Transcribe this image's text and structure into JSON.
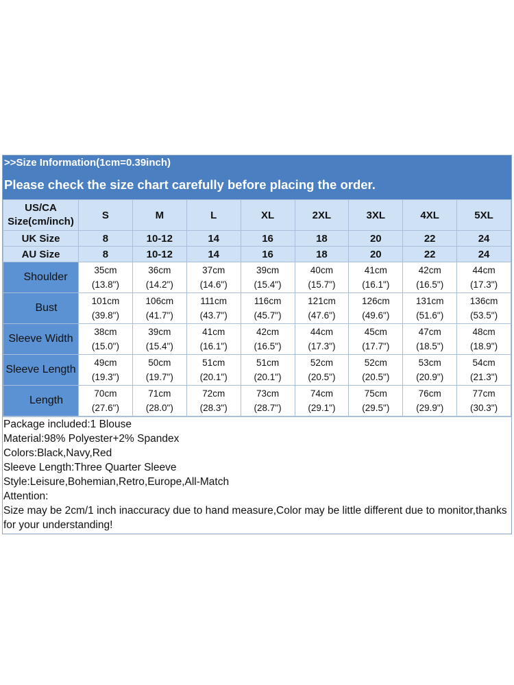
{
  "banner": {
    "info": ">>Size Information(1cm=0.39inch)",
    "warning": "Please check the size chart carefully before placing the order."
  },
  "table": {
    "size_header": "US/CA Size(cm/inch)",
    "sizes": [
      "S",
      "M",
      "L",
      "XL",
      "2XL",
      "3XL",
      "4XL",
      "5XL"
    ],
    "uk_label": "UK Size",
    "uk": [
      "8",
      "10-12",
      "14",
      "16",
      "18",
      "20",
      "22",
      "24"
    ],
    "au_label": "AU Size",
    "au": [
      "8",
      "10-12",
      "14",
      "16",
      "18",
      "20",
      "22",
      "24"
    ],
    "metrics": [
      {
        "label": "Shoulder",
        "cm": [
          "35cm",
          "36cm",
          "37cm",
          "39cm",
          "40cm",
          "41cm",
          "42cm",
          "44cm"
        ],
        "inch": [
          "(13.8\")",
          "(14.2\")",
          "(14.6\")",
          "(15.4\")",
          "(15.7\")",
          "(16.1\")",
          "(16.5\")",
          "(17.3\")"
        ]
      },
      {
        "label": "Bust",
        "cm": [
          "101cm",
          "106cm",
          "111cm",
          "116cm",
          "121cm",
          "126cm",
          "131cm",
          "136cm"
        ],
        "inch": [
          "(39.8\")",
          "(41.7\")",
          "(43.7\")",
          "(45.7\")",
          "(47.6\")",
          "(49.6\")",
          "(51.6\")",
          "(53.5\")"
        ]
      },
      {
        "label": "Sleeve Width",
        "cm": [
          "38cm",
          "39cm",
          "41cm",
          "42cm",
          "44cm",
          "45cm",
          "47cm",
          "48cm"
        ],
        "inch": [
          "(15.0\")",
          "(15.4\")",
          "(16.1\")",
          "(16.5\")",
          "(17.3\")",
          "(17.7\")",
          "(18.5\")",
          "(18.9\")"
        ]
      },
      {
        "label": "Sleeve Length",
        "cm": [
          "49cm",
          "50cm",
          "51cm",
          "51cm",
          "52cm",
          "52cm",
          "53cm",
          "54cm"
        ],
        "inch": [
          "(19.3\")",
          "(19.7\")",
          "(20.1\")",
          "(20.1\")",
          "(20.5\")",
          "(20.5\")",
          "(20.9\")",
          "(21.3\")"
        ]
      },
      {
        "label": "Length",
        "cm": [
          "70cm",
          "71cm",
          "72cm",
          "73cm",
          "74cm",
          "75cm",
          "76cm",
          "77cm"
        ],
        "inch": [
          "(27.6\")",
          "(28.0\")",
          "(28.3\")",
          "(28.7\")",
          "(29.1\")",
          "(29.5\")",
          "(29.9\")",
          "(30.3\")"
        ]
      }
    ]
  },
  "notes": {
    "package": "Package included:1 Blouse",
    "material": "Material:98% Polyester+2% Spandex",
    "colors": "Colors:Black,Navy,Red",
    "sleeve": "Sleeve Length:Three Quarter Sleeve",
    "style": "Style:Leisure,Bohemian,Retro,Europe,All-Match",
    "attention": "Attention:",
    "disclaimer": "Size may be 2cm/1 inch inaccuracy due to hand measure,Color may be little different due to monitor,thanks for your understanding!"
  },
  "colors": {
    "banner": "#4a7fc1",
    "header_cell": "#cfe1f5",
    "metric_label_cell": "#5b92d3",
    "grid_line": "#a9bfd9"
  }
}
